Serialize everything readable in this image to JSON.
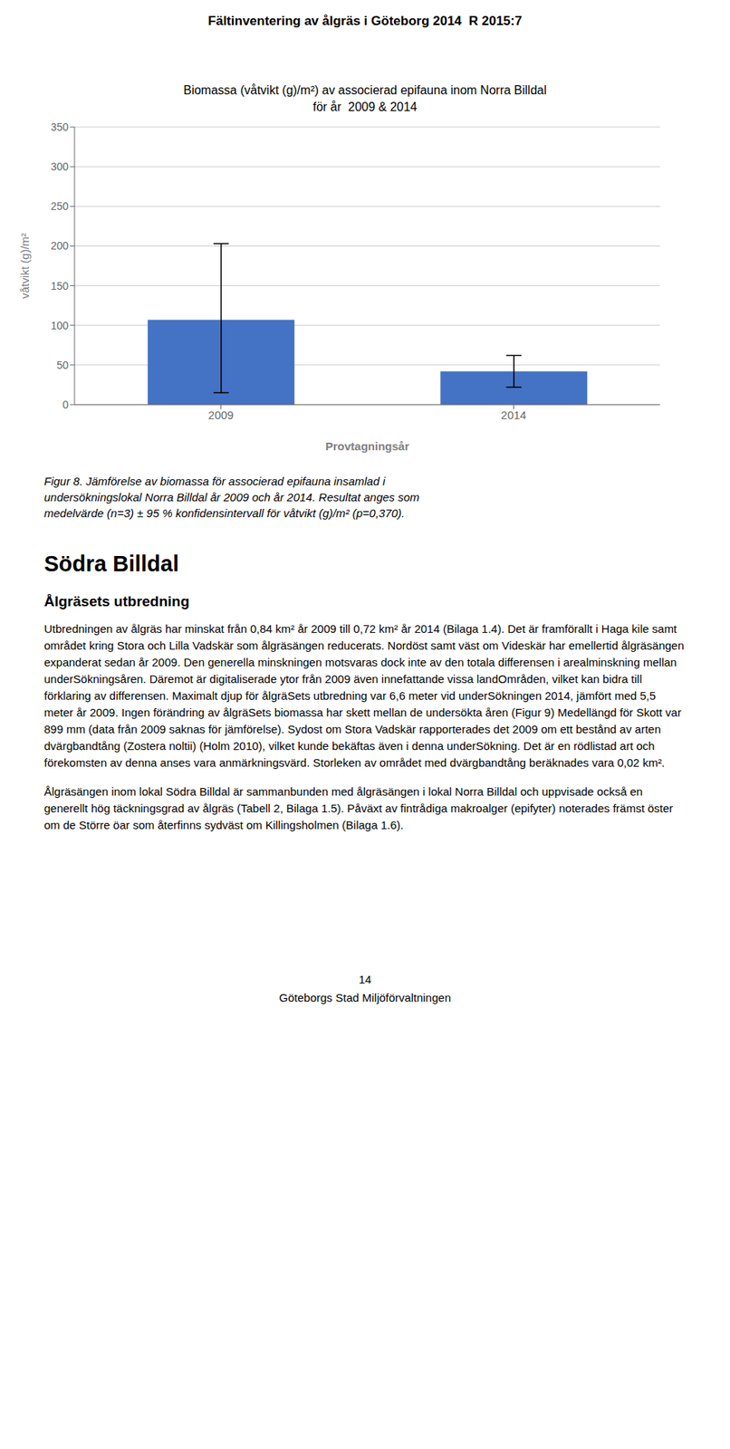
{
  "chart_data": {
    "type": "bar",
    "title": "Biomassa (våtvikt (g)/m²) av associerad epifauna inom Norra Billdal",
    "subtitle": "för år  2009 & 2014",
    "categories": [
      "2009",
      "2014"
    ],
    "values": [
      107,
      42
    ],
    "error_lower": [
      92,
      20
    ],
    "error_upper": [
      96,
      20
    ],
    "color": "#4472C4",
    "ylim": [
      0,
      350
    ],
    "yticks": [
      0,
      50,
      100,
      150,
      200,
      250,
      300,
      350
    ],
    "xlabel": "Provtagningsår",
    "ylabel": "våtvikt (g)/m²",
    "grid": true,
    "annotations": [
      "Fältinventering av ålgräs i Göteborg 2014  R 2015:7",
      "Figur 8. Jämförelse av biomassa för associerad epifauna insamlad i\nundersökningslokal Norra Billdal år 2009 och år 2014. Resultat anges som\nmedelvärde (n=3) ± 95 % konfidensintervall för våtvikt (g)/m² (p=0,370).",
      "Södra Billdal",
      "Ålgräsets utbredning",
      "Utbredningen av ålgräs har minskat från 0,84 km² år 2009 till 0,72 km² år 2014 (Bilaga 1.4). Det är framförallt i Haga kile samt området kring Stora och Lilla Vadskär som ålgräsängen reducerats. Nordöst samt väst om Videskär har emellertid ålgräsängen expanderat sedan år 2009. Den generella minskningen motsvaras dock inte av den totala differensen i arealminskning mellan underSökningsåren. Däremot är digitaliserade ytor från 2009 även innefattande vissa landOmråden, vilket kan bidra till förklaring av differensen. Maximalt djup för ålgräSets utbredning var 6,6 meter vid underSökningen 2014, jämfört med 5,5 meter år 2009. Ingen förändring av ålgräSets biomassa har skett mellan de undersökta åren (Figur 9) Medellängd för Skott var 899 mm (data från 2009 saknas för jämförelse). Sydost om Stora Vadskär rapporterades det 2009 om ett bestånd av arten dvärgbandtång (Zostera noltii) (Holm 2010), vilket kunde bekäftas även i denna underSökning. Det är en rödlistad art och förekomsten av denna anses vara anmärkningsvärd. Storleken av området med dvärgbandtång beräknades vara 0,02 km².",
      "Ålgräsängen inom lokal Södra Billdal är sammanbunden med ålgräsängen i lokal Norra Billdal och uppvisade också en generellt hög täckningsgrad av ålgräs (Tabell 2, Bilaga 1.5). Påväxt av fintrådiga makroalger (epifyter) noterades främst öster om de Större öar som återfinns sydväst om Killingsholmen (Bilaga 1.6).",
      "14",
      "Göteborgs Stad Miljöförvaltningen"
    ]
  }
}
